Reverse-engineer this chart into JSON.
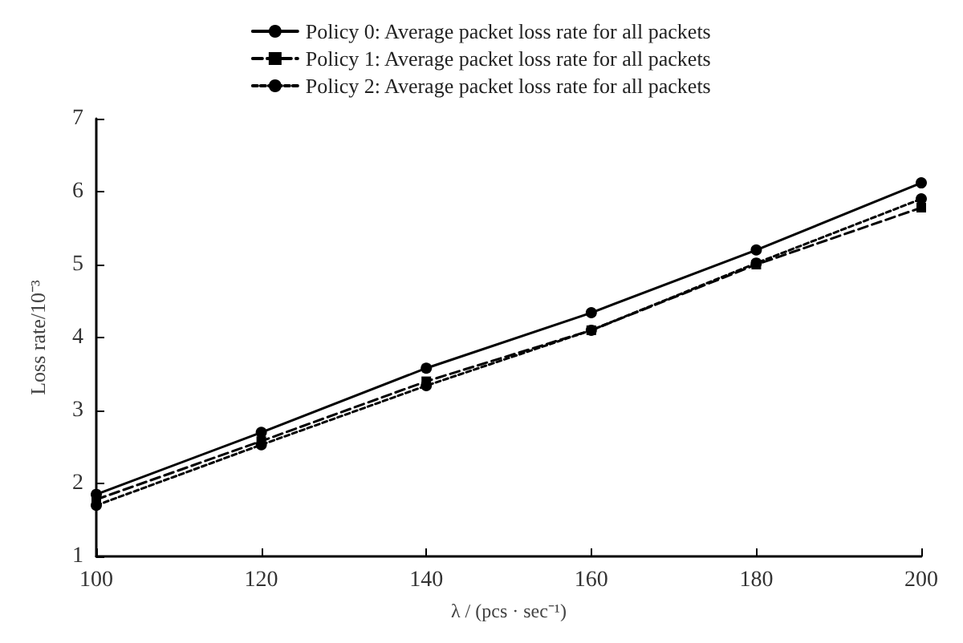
{
  "chart_data": {
    "type": "line",
    "xlabel": "λ / (pcs · sec⁻¹)",
    "ylabel": "Loss rate/10⁻³",
    "x": [
      100,
      120,
      140,
      160,
      180,
      200
    ],
    "series": [
      {
        "name": "Policy 0: Average packet loss rate for all packets",
        "color": "#000000",
        "marker": "circle",
        "line_style": "solid",
        "values": [
          1.85,
          2.7,
          3.58,
          4.34,
          5.2,
          6.12
        ]
      },
      {
        "name": "Policy 1: Average packet loss rate for all packets",
        "color": "#000000",
        "marker": "square",
        "line_style": "dashed",
        "values": [
          1.78,
          2.58,
          3.4,
          4.1,
          5.0,
          5.78
        ]
      },
      {
        "name": "Policy 2: Average packet loss rate for all packets",
        "color": "#000000",
        "marker": "circle",
        "line_style": "dotted",
        "values": [
          1.7,
          2.53,
          3.34,
          4.1,
          5.02,
          5.9
        ]
      }
    ],
    "xlim": [
      100,
      200
    ],
    "xticks": [
      100,
      120,
      140,
      160,
      180,
      200
    ],
    "ylim": [
      1,
      7
    ],
    "yticks": [
      1,
      2,
      3,
      4,
      5,
      6,
      7
    ],
    "grid": false,
    "legend": "top"
  }
}
